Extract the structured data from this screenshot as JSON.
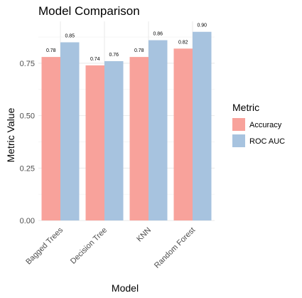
{
  "chart_data": {
    "type": "bar",
    "title": "Model Comparison",
    "xlabel": "Model",
    "ylabel": "Metric Value",
    "categories": [
      "Bagged Trees",
      "Decision Tree",
      "KNN",
      "Random Forest"
    ],
    "series": [
      {
        "name": "Accuracy",
        "values": [
          0.78,
          0.74,
          0.78,
          0.82
        ],
        "labels": [
          "0.78",
          "0.74",
          "0.78",
          "0.82"
        ],
        "color": "#f8a29b"
      },
      {
        "name": "ROC AUC",
        "values": [
          0.85,
          0.76,
          0.86,
          0.9
        ],
        "labels": [
          "0.85",
          "0.76",
          "0.86",
          "0.90"
        ],
        "color": "#a7c3df"
      }
    ],
    "ylim": [
      0,
      0.95
    ],
    "yticks": [
      0,
      0.25,
      0.5,
      0.75
    ],
    "ytick_labels": [
      "0.00",
      "0.25",
      "0.50",
      "0.75"
    ],
    "grid": true,
    "legend": {
      "title": "Metric",
      "placement": "right"
    }
  }
}
